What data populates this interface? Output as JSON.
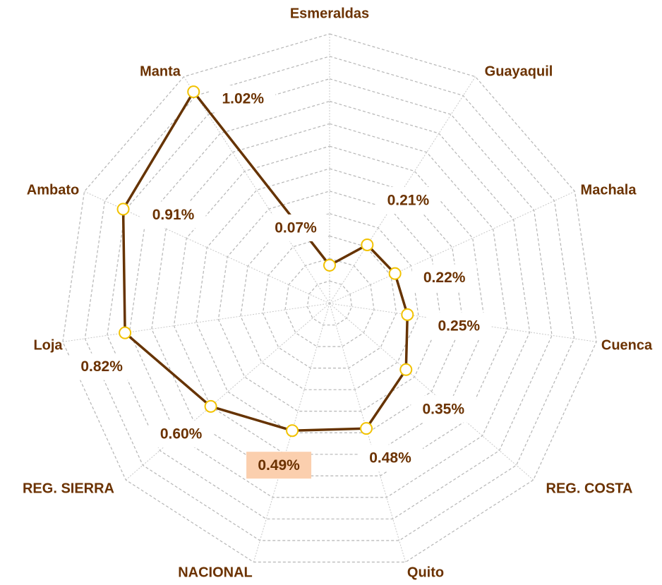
{
  "chart_data": {
    "type": "radar",
    "categories": [
      "Esmeraldas",
      "Guayaquil",
      "Machala",
      "Cuenca",
      "REG. COSTA",
      "Quito",
      "NACIONAL",
      "REG. SIERRA",
      "Loja",
      "Ambato",
      "Manta"
    ],
    "series": [
      {
        "name": null,
        "color": "#663300",
        "values": [
          0.07,
          0.21,
          0.22,
          0.25,
          0.35,
          0.48,
          0.49,
          0.6,
          0.82,
          0.91,
          1.02
        ],
        "value_labels": [
          "0.07%",
          "0.21%",
          "0.22%",
          "0.25%",
          "0.35%",
          "0.48%",
          "0.49%",
          "0.60%",
          "0.82%",
          "0.91%",
          "1.02%"
        ]
      }
    ],
    "marker_color": "#f2c200",
    "highlight": {
      "category": "NACIONAL",
      "color": "#fbcfae"
    },
    "ylim": [
      -0.1,
      1.1
    ],
    "yticks": [
      0,
      0.1,
      0.2,
      0.3,
      0.4,
      0.5,
      0.6,
      0.7,
      0.8,
      0.9,
      1.0,
      1.1
    ],
    "grid": true
  }
}
